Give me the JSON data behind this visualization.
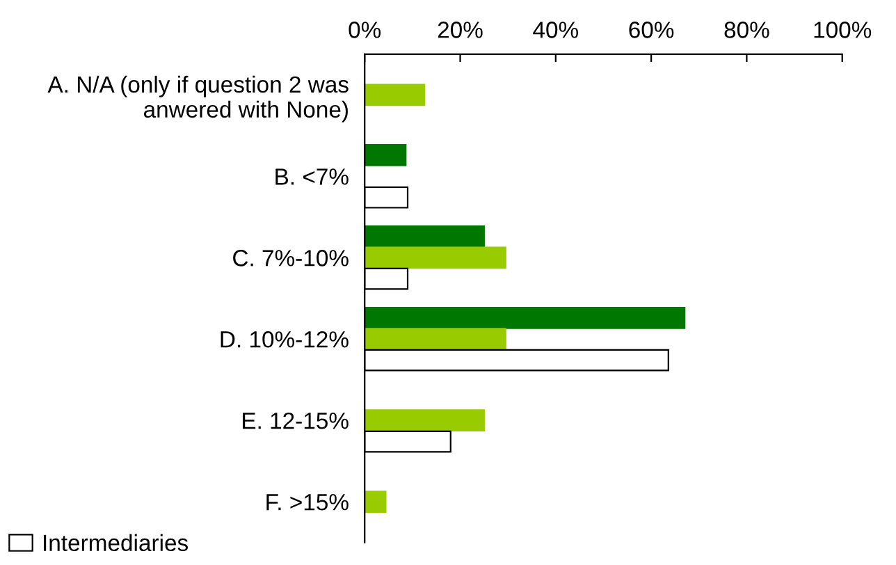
{
  "chart_data": {
    "type": "bar",
    "orientation": "horizontal",
    "categories": [
      "A. N/A (only if question 2 was\nanwered with None)",
      "B. <7%",
      "C. 7%-10%",
      "D. 10%-12%",
      "E. 12-15%",
      "F. >15%"
    ],
    "series": [
      {
        "color": "#007700",
        "values": [
          null,
          8.6,
          25,
          67,
          null,
          null
        ]
      },
      {
        "color": "#99cc00",
        "values": [
          12.5,
          null,
          29.5,
          29.5,
          25,
          4.4
        ]
      },
      {
        "name": "Intermediaries",
        "color": "#ffffff",
        "values": [
          null,
          9,
          9,
          63.6,
          18,
          null
        ]
      }
    ],
    "xlim": [
      0,
      100
    ],
    "xticks": [
      {
        "value": 0,
        "label": "0%"
      },
      {
        "value": 20,
        "label": "20%"
      },
      {
        "value": 40,
        "label": "40%"
      },
      {
        "value": 60,
        "label": "60%"
      },
      {
        "value": 80,
        "label": "80%"
      },
      {
        "value": 100,
        "label": "100%"
      }
    ],
    "grid": false,
    "legend": "bottom left"
  }
}
